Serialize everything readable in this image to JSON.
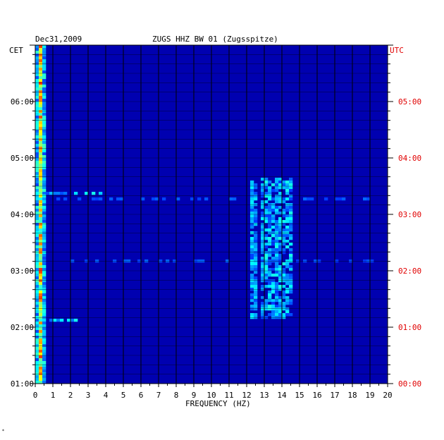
{
  "chart_data": {
    "type": "heatmap",
    "date": "Dec31,2009",
    "title": "ZUGS HHZ BW 01 (Zugsspitze)",
    "xlabel": "FREQUENCY (HZ)",
    "left_axis_label": "CET",
    "right_axis_label": "UTC",
    "x_ticks": [
      "0",
      "1",
      "2",
      "3",
      "4",
      "5",
      "6",
      "7",
      "8",
      "9",
      "10",
      "11",
      "12",
      "13",
      "14",
      "15",
      "16",
      "17",
      "18",
      "19",
      "20"
    ],
    "xlim": [
      0,
      20
    ],
    "y_ticks_left": [
      "06:00",
      "05:00",
      "04:00",
      "03:00",
      "02:00",
      "01:00"
    ],
    "y_ticks_right": [
      "05:00",
      "04:00",
      "03:00",
      "02:00",
      "01:00",
      "00:00"
    ],
    "ylim_cet": [
      "01:00",
      "07:00"
    ],
    "grid": true,
    "colormap": [
      "#000080",
      "#0000ff",
      "#00ffff",
      "#ffff00",
      "#ff0000"
    ],
    "features": [
      {
        "freq_hz": 0.3,
        "time_cet": "01:00-07:00",
        "level": "high"
      },
      {
        "freq_hz": 12.4,
        "time_cet": "02:10-04:35",
        "level": "medium"
      },
      {
        "freq_hz_range": [
          12.8,
          14.6
        ],
        "time_cet": "02:10-04:40",
        "level": "medium"
      },
      {
        "freq_hz_range": [
          0,
          3.8
        ],
        "time_cet": "04:23",
        "level": "medium"
      },
      {
        "freq_hz_range": [
          0,
          2.6
        ],
        "time_cet": "02:07",
        "level": "medium"
      },
      {
        "freq_hz_range": [
          0,
          20
        ],
        "time_cet": "04:16",
        "level": "low"
      },
      {
        "freq_hz_range": [
          0,
          20
        ],
        "time_cet": "03:10",
        "level": "low"
      }
    ]
  },
  "colors": {
    "utc_axis": "#e00000",
    "cet_axis": "#000000",
    "grid": "#000000",
    "background": "#0000b0"
  },
  "footer_mark": "*"
}
